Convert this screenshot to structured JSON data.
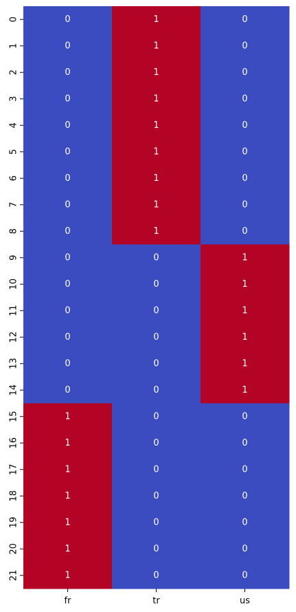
{
  "chart_data": {
    "type": "heatmap",
    "x_categories": [
      "fr",
      "tr",
      "us"
    ],
    "y_categories": [
      "0",
      "1",
      "2",
      "3",
      "4",
      "5",
      "6",
      "7",
      "8",
      "9",
      "10",
      "11",
      "12",
      "13",
      "14",
      "15",
      "16",
      "17",
      "18",
      "19",
      "20",
      "21"
    ],
    "values": [
      [
        0,
        1,
        0
      ],
      [
        0,
        1,
        0
      ],
      [
        0,
        1,
        0
      ],
      [
        0,
        1,
        0
      ],
      [
        0,
        1,
        0
      ],
      [
        0,
        1,
        0
      ],
      [
        0,
        1,
        0
      ],
      [
        0,
        1,
        0
      ],
      [
        0,
        1,
        0
      ],
      [
        0,
        0,
        1
      ],
      [
        0,
        0,
        1
      ],
      [
        0,
        0,
        1
      ],
      [
        0,
        0,
        1
      ],
      [
        0,
        0,
        1
      ],
      [
        0,
        0,
        1
      ],
      [
        1,
        0,
        0
      ],
      [
        1,
        0,
        0
      ],
      [
        1,
        0,
        0
      ],
      [
        1,
        0,
        0
      ],
      [
        1,
        0,
        0
      ],
      [
        1,
        0,
        0
      ],
      [
        1,
        0,
        0
      ]
    ],
    "value_range": [
      0,
      1
    ],
    "colorbar": false,
    "annotated": true
  },
  "colors": {
    "low": "#3b4cc0",
    "high": "#b40426",
    "annotation": "#ffffff",
    "tick": "#000000"
  }
}
